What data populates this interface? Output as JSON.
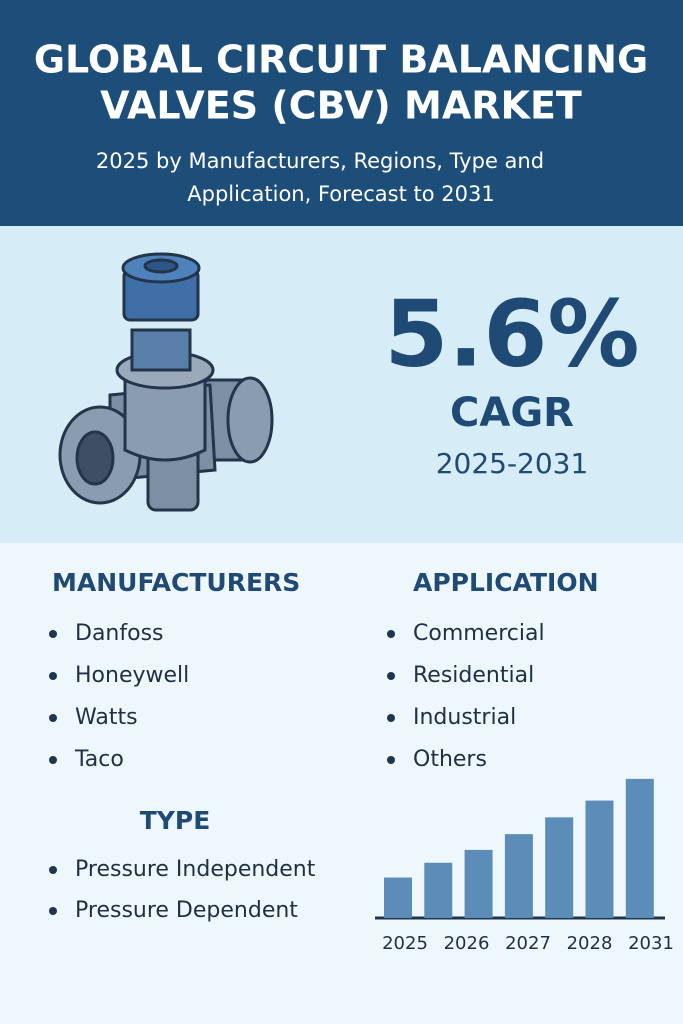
{
  "header": {
    "title_lines": [
      "GLOBAL CIRCUIT BALANCING",
      "VALVES (CBV) MARKET"
    ],
    "subtitle_lines": [
      "2025 by Manufacturers, Regions, Type and",
      "Application, Forecast to 2031"
    ]
  },
  "highlight": {
    "value": "5.6%",
    "label": "CAGR",
    "period": "2025-2031"
  },
  "manufacturers": {
    "heading": "MANUFACTURERS",
    "items": [
      "Danfoss",
      "Honeywell",
      "Watts",
      "Taco"
    ]
  },
  "application": {
    "heading": "APPLICATION",
    "items": [
      "Commercial",
      "Residential",
      "Industrial",
      "Others"
    ]
  },
  "type": {
    "heading": "TYPE",
    "items": [
      "Pressure Independent",
      "Pressure Dependent"
    ]
  },
  "chart_data": {
    "type": "bar",
    "categories": [
      "2025",
      null,
      "2026",
      "2027",
      null,
      "2028",
      "2031"
    ],
    "values": [
      41,
      56,
      69,
      85,
      102,
      119,
      141
    ],
    "color": "#5b8db8",
    "ylim": [
      0,
      150
    ]
  }
}
